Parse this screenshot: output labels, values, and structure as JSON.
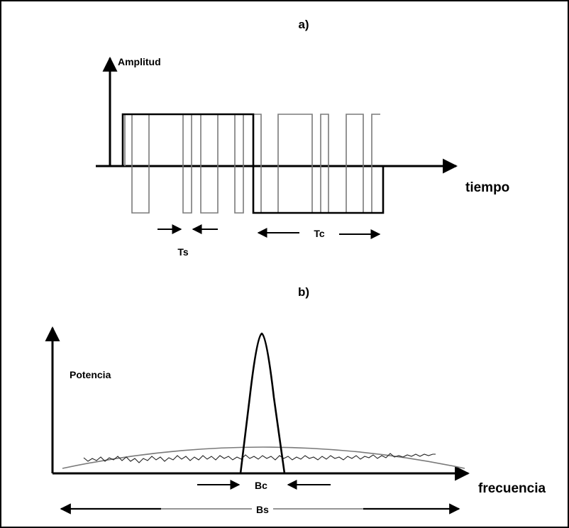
{
  "panel_a": {
    "label": "a)",
    "y_axis_label": "Amplitud",
    "x_axis_label": "tiempo",
    "symbol_period_label": "Ts",
    "chip_period_label": "Tc"
  },
  "panel_b": {
    "label": "b)",
    "y_axis_label": "Potencia",
    "x_axis_label": "frecuencia",
    "narrow_band_label": "Bc",
    "spread_band_label": "Bs"
  },
  "colors": {
    "frame": "#000000",
    "axes": "#000000",
    "thin_waveform": "#7a7a7a",
    "thick_waveform": "#000000"
  }
}
